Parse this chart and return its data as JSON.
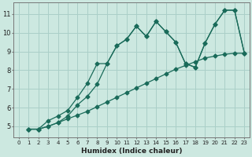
{
  "xlabel": "Humidex (Indice chaleur)",
  "background_color": "#cce8e0",
  "grid_color": "#aacfc8",
  "line_color": "#1a6b5a",
  "xlim": [
    -0.5,
    23.5
  ],
  "ylim": [
    4.4,
    11.6
  ],
  "xticks": [
    0,
    1,
    2,
    3,
    4,
    5,
    6,
    7,
    8,
    9,
    10,
    11,
    12,
    13,
    14,
    15,
    16,
    17,
    18,
    19,
    20,
    21,
    22,
    23
  ],
  "yticks": [
    5,
    6,
    7,
    8,
    9,
    10,
    11
  ],
  "line1_x": [
    1,
    2,
    3,
    4,
    5,
    6,
    7,
    8,
    9,
    10,
    11,
    12,
    13,
    14,
    15,
    16,
    17,
    18,
    19,
    20,
    21,
    22,
    23
  ],
  "line1_y": [
    4.85,
    4.85,
    5.0,
    5.2,
    5.4,
    5.6,
    5.8,
    6.05,
    6.3,
    6.55,
    6.8,
    7.05,
    7.3,
    7.55,
    7.8,
    8.05,
    8.25,
    8.45,
    8.65,
    8.75,
    8.85,
    8.9,
    8.9
  ],
  "line2_x": [
    1,
    2,
    3,
    4,
    5,
    6,
    7,
    8,
    9,
    10,
    11,
    12,
    13,
    14,
    15,
    16,
    17,
    18,
    19,
    20,
    21,
    22,
    23
  ],
  "line2_y": [
    4.85,
    4.85,
    5.3,
    5.55,
    5.85,
    6.55,
    7.3,
    8.35,
    8.35,
    9.3,
    9.65,
    10.35,
    9.8,
    10.6,
    10.05,
    9.5,
    8.35,
    8.15,
    9.45,
    10.45,
    11.2,
    11.2,
    8.9
  ],
  "line3_x": [
    1,
    2,
    3,
    4,
    5,
    6,
    7,
    8,
    9,
    10,
    11,
    12,
    13,
    14,
    15,
    16,
    17,
    18,
    19,
    20,
    21,
    22,
    23
  ],
  "line3_y": [
    4.85,
    4.85,
    5.0,
    5.2,
    5.55,
    6.15,
    6.6,
    7.25,
    8.35,
    9.3,
    9.65,
    10.35,
    9.8,
    10.6,
    10.05,
    9.5,
    8.35,
    8.15,
    9.45,
    10.45,
    11.2,
    11.2,
    8.9
  ]
}
